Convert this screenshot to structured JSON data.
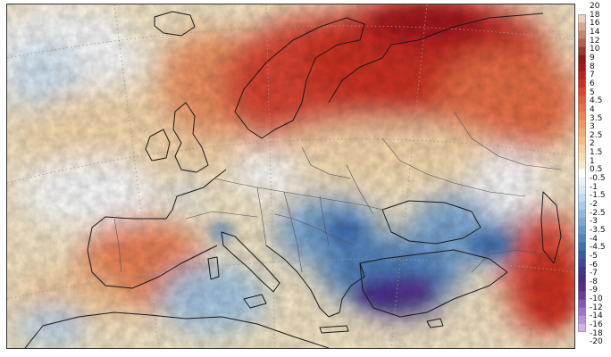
{
  "legend": {
    "labels": [
      "20",
      "18",
      "16",
      "14",
      "12",
      "10",
      "9",
      "8",
      "7",
      "6",
      "5",
      "4.5",
      "4",
      "3.5",
      "3",
      "2.5",
      "2",
      "1.5",
      "1",
      "0.5",
      "-0.5",
      "-1",
      "-1.5",
      "-2",
      "-2.5",
      "-3",
      "-3.5",
      "-4",
      "-4.5",
      "-5",
      "-6",
      "-7",
      "-8",
      "-9",
      "-10",
      "-12",
      "-14",
      "-16",
      "-18",
      "-20"
    ],
    "colors": [
      "#e8cfc0",
      "#d7a88e",
      "#c4856b",
      "#b3614c",
      "#9a3a2e",
      "#8a1c12",
      "#a4171a",
      "#bd2220",
      "#cf3023",
      "#dc4530",
      "#e55b3c",
      "#eb6f47",
      "#ef8254",
      "#f39563",
      "#f6a873",
      "#f8bb86",
      "#f9cc9a",
      "#f9dcb0",
      "#f8e8c8",
      "#ffffff",
      "#e9f2fa",
      "#d6e7f5",
      "#c0daef",
      "#a9cbe7",
      "#92badf",
      "#7aa8d5",
      "#6395ca",
      "#4f82bf",
      "#3f6fb3",
      "#3a5aa5",
      "#3b479a",
      "#40368f",
      "#4a2a88",
      "#5a2a8c",
      "#6e3aa0",
      "#8656b4",
      "#9f74c6",
      "#b894d6",
      "#cfb4e4"
    ]
  },
  "map": {
    "kind": "temperature anomaly map of Europe",
    "palette": {
      "hot": "#cf3023",
      "warm": "#f39563",
      "neutral": "#ffffff",
      "cool": "#a9cbe7",
      "cold": "#3f6fb3",
      "very_cold": "#4a2a88",
      "land_outline": "#1a1a1a",
      "border": "#555555",
      "graticule": "#9a9a9a"
    }
  }
}
